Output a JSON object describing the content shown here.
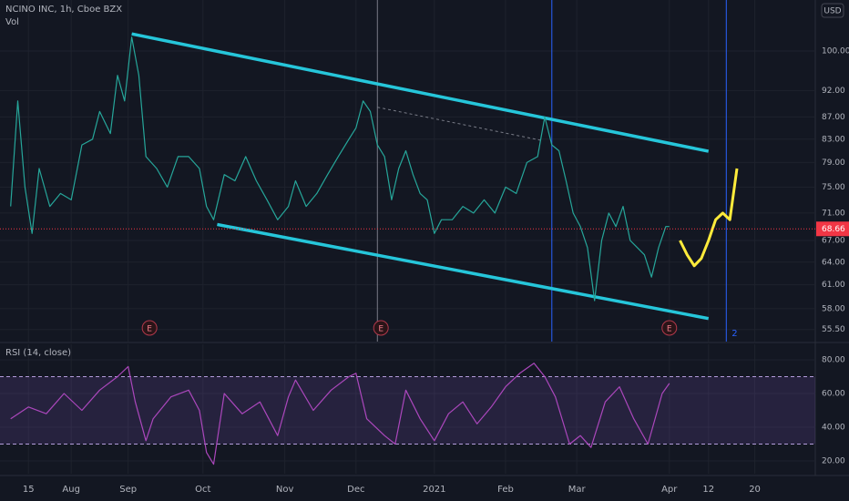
{
  "chart_data": [
    {
      "type": "line",
      "title": "NCINO INC, 1h, Cboe BZX",
      "subtitle": "Vol",
      "currency": "USD",
      "log_scale": true,
      "grid": true,
      "xlim": [
        -8,
        221
      ],
      "ylim": [
        54.1,
        111.4
      ],
      "xticks": [
        {
          "value": 0,
          "label": "15"
        },
        {
          "value": 12,
          "label": "Aug"
        },
        {
          "value": 28,
          "label": "Sep"
        },
        {
          "value": 49,
          "label": "Oct"
        },
        {
          "value": 72,
          "label": "Nov"
        },
        {
          "value": 92,
          "label": "Dec"
        },
        {
          "value": 114,
          "label": "2021"
        },
        {
          "value": 134,
          "label": "Feb"
        },
        {
          "value": 154,
          "label": "Mar"
        },
        {
          "value": 180,
          "label": "Apr"
        },
        {
          "value": 191,
          "label": "12"
        },
        {
          "value": 204,
          "label": "20"
        }
      ],
      "yticks": [
        {
          "value": 55.5,
          "label": "55.50"
        },
        {
          "value": 58,
          "label": "58.00"
        },
        {
          "value": 61,
          "label": "61.00"
        },
        {
          "value": 64,
          "label": "64.00"
        },
        {
          "value": 67,
          "label": "67.00"
        },
        {
          "value": 71,
          "label": "71.00"
        },
        {
          "value": 75,
          "label": "75.00"
        },
        {
          "value": 79,
          "label": "79.00"
        },
        {
          "value": 83,
          "label": "83.00"
        },
        {
          "value": 87,
          "label": "87.00"
        },
        {
          "value": 92,
          "label": "92.00"
        },
        {
          "value": 100,
          "label": "100.00"
        }
      ],
      "series": [
        {
          "color": "#26a69a",
          "x": [
            -5,
            -3,
            -1,
            1,
            3,
            6,
            9,
            12,
            15,
            18,
            20,
            23,
            25,
            27,
            29,
            31,
            33,
            36,
            39,
            42,
            45,
            48,
            50,
            52,
            55,
            58,
            61,
            64,
            67,
            70,
            73,
            75,
            78,
            81,
            84,
            87,
            90,
            92,
            94,
            96,
            98,
            100,
            102,
            104,
            106,
            108,
            110,
            112,
            114,
            116,
            119,
            122,
            125,
            128,
            131,
            134,
            137,
            140,
            143,
            145,
            147,
            149,
            151,
            153,
            155,
            157,
            159,
            161,
            163,
            165,
            167,
            169,
            171,
            173,
            175,
            177,
            179,
            180
          ],
          "values": [
            72,
            90,
            75,
            68,
            78,
            72,
            74,
            73,
            82,
            83,
            88,
            84,
            95,
            90,
            103,
            95,
            80,
            78,
            75,
            80,
            80,
            78,
            72,
            70,
            77,
            76,
            80,
            76,
            73,
            70,
            72,
            76,
            72,
            74,
            77,
            80,
            83,
            85,
            90,
            88,
            82,
            80,
            73,
            78,
            81,
            77,
            74,
            73,
            68,
            70,
            70,
            72,
            71,
            73,
            71,
            75,
            74,
            79,
            80,
            87,
            82,
            81,
            76,
            71,
            69,
            66,
            59,
            67,
            71,
            69,
            72,
            67,
            66,
            65,
            62,
            66,
            69,
            69
          ]
        },
        {
          "color": "#ffeb3b",
          "x": [
            183,
            185,
            187,
            189,
            191,
            193,
            195,
            197,
            199
          ],
          "values": [
            67,
            65,
            63.5,
            64.5,
            67,
            70,
            71,
            70,
            78
          ]
        }
      ],
      "trendlines": [
        {
          "color": "#26c6da",
          "x": [
            29,
            191
          ],
          "values": [
            103.7,
            80.9
          ]
        },
        {
          "color": "#26c6da",
          "x": [
            53,
            191
          ],
          "values": [
            69.3,
            56.8
          ]
        },
        {
          "color": "#787b86",
          "dashed": true,
          "x": [
            98,
            144
          ],
          "values": [
            88.8,
            82.8
          ]
        }
      ],
      "vlines": [
        {
          "x": 98,
          "color": "#787b86"
        },
        {
          "x": 147,
          "color": "#2962ff"
        },
        {
          "x": 196,
          "color": "#2962ff",
          "label": "2"
        }
      ],
      "events": [
        {
          "x": 34,
          "label": "E"
        },
        {
          "x": 99,
          "label": "E"
        },
        {
          "x": 180,
          "label": "E"
        }
      ],
      "last_price": {
        "value": 68.66,
        "label": "68.66",
        "color": "#f23645"
      }
    },
    {
      "type": "line",
      "title": "RSI (14, close)",
      "grid": true,
      "xlim": [
        -8,
        221
      ],
      "ylim": [
        12.4,
        89.2
      ],
      "band": [
        30,
        70
      ],
      "yticks": [
        {
          "value": 20,
          "label": "20.00"
        },
        {
          "value": 40,
          "label": "40.00"
        },
        {
          "value": 60,
          "label": "60.00"
        },
        {
          "value": 80,
          "label": "80.00"
        }
      ],
      "series": [
        {
          "color": "#ab47bc",
          "x": [
            -5,
            0,
            5,
            10,
            15,
            20,
            25,
            28,
            30,
            33,
            35,
            40,
            45,
            48,
            50,
            52,
            55,
            60,
            65,
            70,
            73,
            75,
            80,
            85,
            90,
            92,
            95,
            100,
            103,
            106,
            110,
            114,
            118,
            122,
            126,
            130,
            134,
            138,
            142,
            145,
            148,
            152,
            155,
            158,
            162,
            166,
            170,
            174,
            178,
            180
          ],
          "values": [
            45,
            52,
            48,
            60,
            50,
            62,
            70,
            76,
            55,
            32,
            45,
            58,
            62,
            50,
            25,
            18,
            60,
            48,
            55,
            35,
            58,
            68,
            50,
            62,
            70,
            72,
            45,
            35,
            30,
            62,
            45,
            32,
            48,
            55,
            42,
            52,
            64,
            72,
            78,
            70,
            58,
            30,
            35,
            28,
            55,
            64,
            45,
            30,
            60,
            66
          ]
        }
      ]
    }
  ]
}
